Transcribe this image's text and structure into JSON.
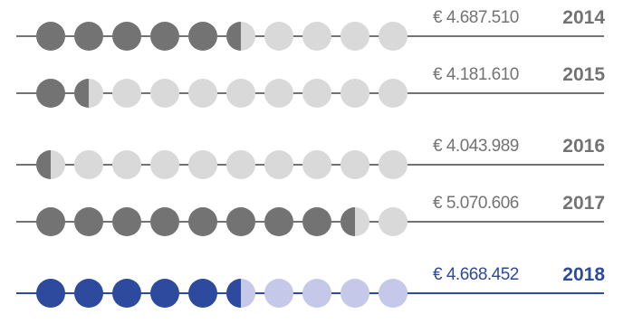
{
  "chart_data": {
    "type": "pictogram",
    "units_per_row": 10,
    "currency_symbol": "€",
    "colors": {
      "filled": "#737373",
      "empty": "#d9d9d9",
      "line": "#737373",
      "value_text": "#737373",
      "year_text": "#737373",
      "highlight_filled": "#2e4a9e",
      "highlight_empty": "#c5c8e9",
      "highlight_line": "#2e4a9e",
      "highlight_text": "#2e4a9e"
    },
    "rows": [
      {
        "year": "2014",
        "value_label": "4.687.510",
        "value": 4687510,
        "filled_units": 5.5,
        "highlight": false
      },
      {
        "year": "2015",
        "value_label": "4.181.610",
        "value": 4181610,
        "filled_units": 1.5,
        "highlight": false
      },
      {
        "year": "2016",
        "value_label": "4.043.989",
        "value": 4043989,
        "filled_units": 0.5,
        "highlight": false
      },
      {
        "year": "2017",
        "value_label": "5.070.606",
        "value": 5070606,
        "filled_units": 8.5,
        "highlight": false
      },
      {
        "year": "2018",
        "value_label": "4.668.452",
        "value": 4668452,
        "filled_units": 5.5,
        "highlight": true
      }
    ]
  }
}
